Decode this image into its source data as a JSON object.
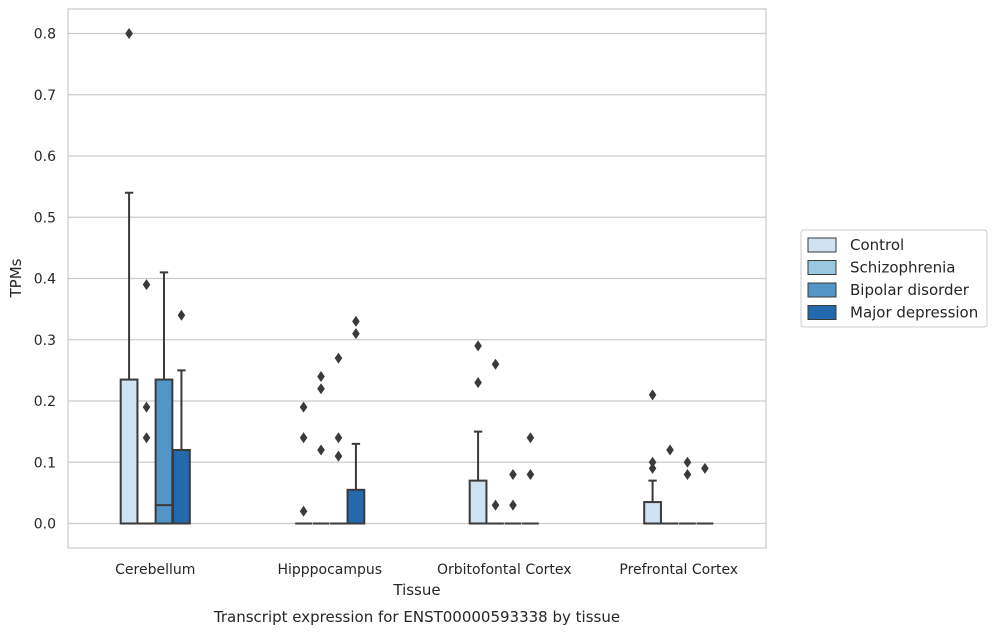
{
  "caption": "Transcript expression for ENST00000593338 by tissue",
  "chart_data": {
    "type": "box",
    "title": "",
    "xlabel": "Tissue",
    "ylabel": "TPMs",
    "ylim": [
      -0.04,
      0.84
    ],
    "yticks": [
      "0.0",
      "0.1",
      "0.2",
      "0.3",
      "0.4",
      "0.5",
      "0.6",
      "0.7",
      "0.8"
    ],
    "grid": true,
    "legend_position": "right",
    "categories": [
      "Cerebellum",
      "Hipppocampus",
      "Orbitofontal Cortex",
      "Prefrontal Cortex"
    ],
    "series": [
      {
        "name": "Control",
        "color": "#d0e1f2",
        "boxes": [
          {
            "q1": 0.0,
            "median": 0.0,
            "q3": 0.235,
            "whisker_low": 0.0,
            "whisker_high": 0.54,
            "outliers": [
              0.8
            ]
          },
          {
            "q1": 0.0,
            "median": 0.0,
            "q3": 0.0,
            "whisker_low": 0.0,
            "whisker_high": 0.0,
            "outliers": [
              0.02,
              0.14,
              0.19
            ]
          },
          {
            "q1": 0.0,
            "median": 0.0,
            "q3": 0.07,
            "whisker_low": 0.0,
            "whisker_high": 0.15,
            "outliers": [
              0.23,
              0.29
            ]
          },
          {
            "q1": 0.0,
            "median": 0.0,
            "q3": 0.035,
            "whisker_low": 0.0,
            "whisker_high": 0.07,
            "outliers": [
              0.09,
              0.1,
              0.21
            ]
          }
        ]
      },
      {
        "name": "Schizophrenia",
        "color": "#9ac8e0",
        "boxes": [
          {
            "q1": 0.0,
            "median": 0.0,
            "q3": 0.0,
            "whisker_low": 0.0,
            "whisker_high": 0.0,
            "outliers": [
              0.14,
              0.19,
              0.39
            ]
          },
          {
            "q1": 0.0,
            "median": 0.0,
            "q3": 0.0,
            "whisker_low": 0.0,
            "whisker_high": 0.0,
            "outliers": [
              0.12,
              0.22,
              0.24
            ]
          },
          {
            "q1": 0.0,
            "median": 0.0,
            "q3": 0.0,
            "whisker_low": 0.0,
            "whisker_high": 0.0,
            "outliers": [
              0.03,
              0.26
            ]
          },
          {
            "q1": 0.0,
            "median": 0.0,
            "q3": 0.0,
            "whisker_low": 0.0,
            "whisker_high": 0.0,
            "outliers": [
              0.12
            ]
          }
        ]
      },
      {
        "name": "Bipolar disorder",
        "color": "#5296c7",
        "boxes": [
          {
            "q1": 0.0,
            "median": 0.03,
            "q3": 0.235,
            "whisker_low": 0.0,
            "whisker_high": 0.41,
            "outliers": []
          },
          {
            "q1": 0.0,
            "median": 0.0,
            "q3": 0.0,
            "whisker_low": 0.0,
            "whisker_high": 0.0,
            "outliers": [
              0.11,
              0.14,
              0.27
            ]
          },
          {
            "q1": 0.0,
            "median": 0.0,
            "q3": 0.0,
            "whisker_low": 0.0,
            "whisker_high": 0.0,
            "outliers": [
              0.03,
              0.08
            ]
          },
          {
            "q1": 0.0,
            "median": 0.0,
            "q3": 0.0,
            "whisker_low": 0.0,
            "whisker_high": 0.0,
            "outliers": [
              0.08,
              0.1
            ]
          }
        ]
      },
      {
        "name": "Major depression",
        "color": "#2369ad",
        "boxes": [
          {
            "q1": 0.0,
            "median": 0.0,
            "q3": 0.12,
            "whisker_low": 0.0,
            "whisker_high": 0.25,
            "outliers": [
              0.34
            ]
          },
          {
            "q1": 0.0,
            "median": 0.0,
            "q3": 0.055,
            "whisker_low": 0.0,
            "whisker_high": 0.13,
            "outliers": [
              0.31,
              0.33
            ]
          },
          {
            "q1": 0.0,
            "median": 0.0,
            "q3": 0.0,
            "whisker_low": 0.0,
            "whisker_high": 0.0,
            "outliers": [
              0.08,
              0.14
            ]
          },
          {
            "q1": 0.0,
            "median": 0.0,
            "q3": 0.0,
            "whisker_low": 0.0,
            "whisker_high": 0.0,
            "outliers": [
              0.09
            ]
          }
        ]
      }
    ]
  }
}
